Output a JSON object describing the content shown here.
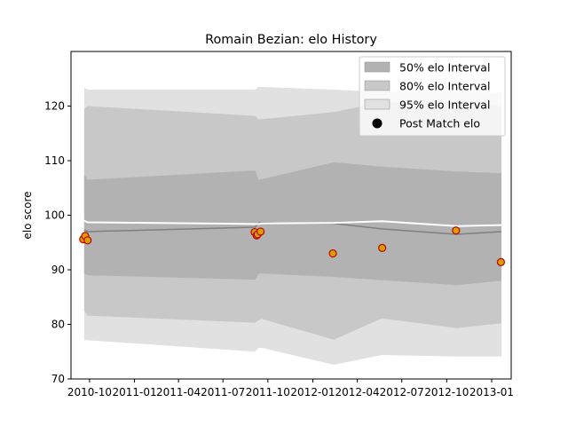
{
  "chart_data": {
    "type": "area",
    "title": "Romain Bezian: elo History",
    "xlabel": "",
    "ylabel": "elo score",
    "xlim": [
      "2010-08-24",
      "2013-02-10"
    ],
    "ylim": [
      70,
      130
    ],
    "yticks": [
      70,
      80,
      90,
      100,
      110,
      120
    ],
    "xticks": [
      {
        "date": "2010-10-01",
        "label": "2010-10"
      },
      {
        "date": "2011-01-01",
        "label": "2011-01"
      },
      {
        "date": "2011-04-01",
        "label": "2011-04"
      },
      {
        "date": "2011-07-01",
        "label": "2011-07"
      },
      {
        "date": "2011-10-01",
        "label": "2011-10"
      },
      {
        "date": "2012-01-01",
        "label": "2012-01"
      },
      {
        "date": "2012-04-01",
        "label": "2012-04"
      },
      {
        "date": "2012-07-01",
        "label": "2012-07"
      },
      {
        "date": "2012-10-01",
        "label": "2012-10"
      },
      {
        "date": "2013-01-01",
        "label": "2013-01"
      }
    ],
    "grid": false,
    "legend_position": "top-right",
    "x": [
      "2010-09-20",
      "2010-09-27",
      "2011-09-05",
      "2011-09-12",
      "2011-09-19",
      "2012-02-13",
      "2012-05-21",
      "2012-10-22",
      "2013-01-21"
    ],
    "series": [
      {
        "name": "50% elo Interval",
        "lower": [
          89.3,
          89.0,
          88.2,
          89.3,
          89.3,
          88.7,
          88.1,
          87.2,
          88.0
        ],
        "upper": [
          107.5,
          106.5,
          108.2,
          106.5,
          106.6,
          109.7,
          108.9,
          108.0,
          107.7
        ],
        "color": "#b2b2b2"
      },
      {
        "name": "80% elo Interval",
        "lower": [
          82.5,
          81.6,
          80.3,
          80.8,
          81.0,
          77.2,
          81.1,
          79.3,
          80.2
        ],
        "upper": [
          119.5,
          120.0,
          118.2,
          117.6,
          117.6,
          118.9,
          120.7,
          120.7,
          120.0
        ],
        "color": "#c8c8c8"
      },
      {
        "name": "95% elo Interval",
        "lower": [
          77.1,
          77.1,
          75.0,
          75.7,
          75.7,
          72.6,
          74.4,
          74.1,
          74.1
        ],
        "upper": [
          123.4,
          123.0,
          123.0,
          123.5,
          123.5,
          123.0,
          122.6,
          122.6,
          122.4
        ],
        "color": "#e1e1e1"
      },
      {
        "name": "Post Match elo",
        "type": "scatter",
        "color": "#d6a000",
        "edge": "#c00000",
        "points": [
          {
            "x": "2010-09-18",
            "y": 95.6
          },
          {
            "x": "2010-09-22",
            "y": 96.2
          },
          {
            "x": "2010-09-27",
            "y": 95.4
          },
          {
            "x": "2011-09-04",
            "y": 96.9
          },
          {
            "x": "2011-09-08",
            "y": 96.3
          },
          {
            "x": "2011-09-10",
            "y": 96.5
          },
          {
            "x": "2011-09-16",
            "y": 97.0
          },
          {
            "x": "2012-02-11",
            "y": 93.0
          },
          {
            "x": "2012-05-22",
            "y": 94.0
          },
          {
            "x": "2012-10-20",
            "y": 97.2
          },
          {
            "x": "2013-01-20",
            "y": 91.4
          }
        ]
      }
    ],
    "lines": [
      {
        "role": "mean",
        "color": "#808080",
        "x": [
          "2010-09-20",
          "2010-09-27",
          "2011-09-05",
          "2011-09-12",
          "2011-09-19",
          "2012-02-13",
          "2012-05-21",
          "2012-10-22",
          "2013-01-21"
        ],
        "values": [
          97.3,
          97.0,
          97.8,
          98.6,
          98.6,
          98.5,
          97.5,
          96.5,
          97.0
        ]
      },
      {
        "role": "median",
        "color": "#ffffff",
        "x": [
          "2010-09-20",
          "2010-09-27",
          "2011-09-05",
          "2011-09-12",
          "2011-09-19",
          "2012-02-13",
          "2012-05-21",
          "2012-10-22",
          "2013-01-21"
        ],
        "values": [
          99.0,
          98.7,
          98.4,
          98.4,
          98.5,
          98.6,
          98.9,
          98.0,
          98.2
        ]
      }
    ]
  }
}
